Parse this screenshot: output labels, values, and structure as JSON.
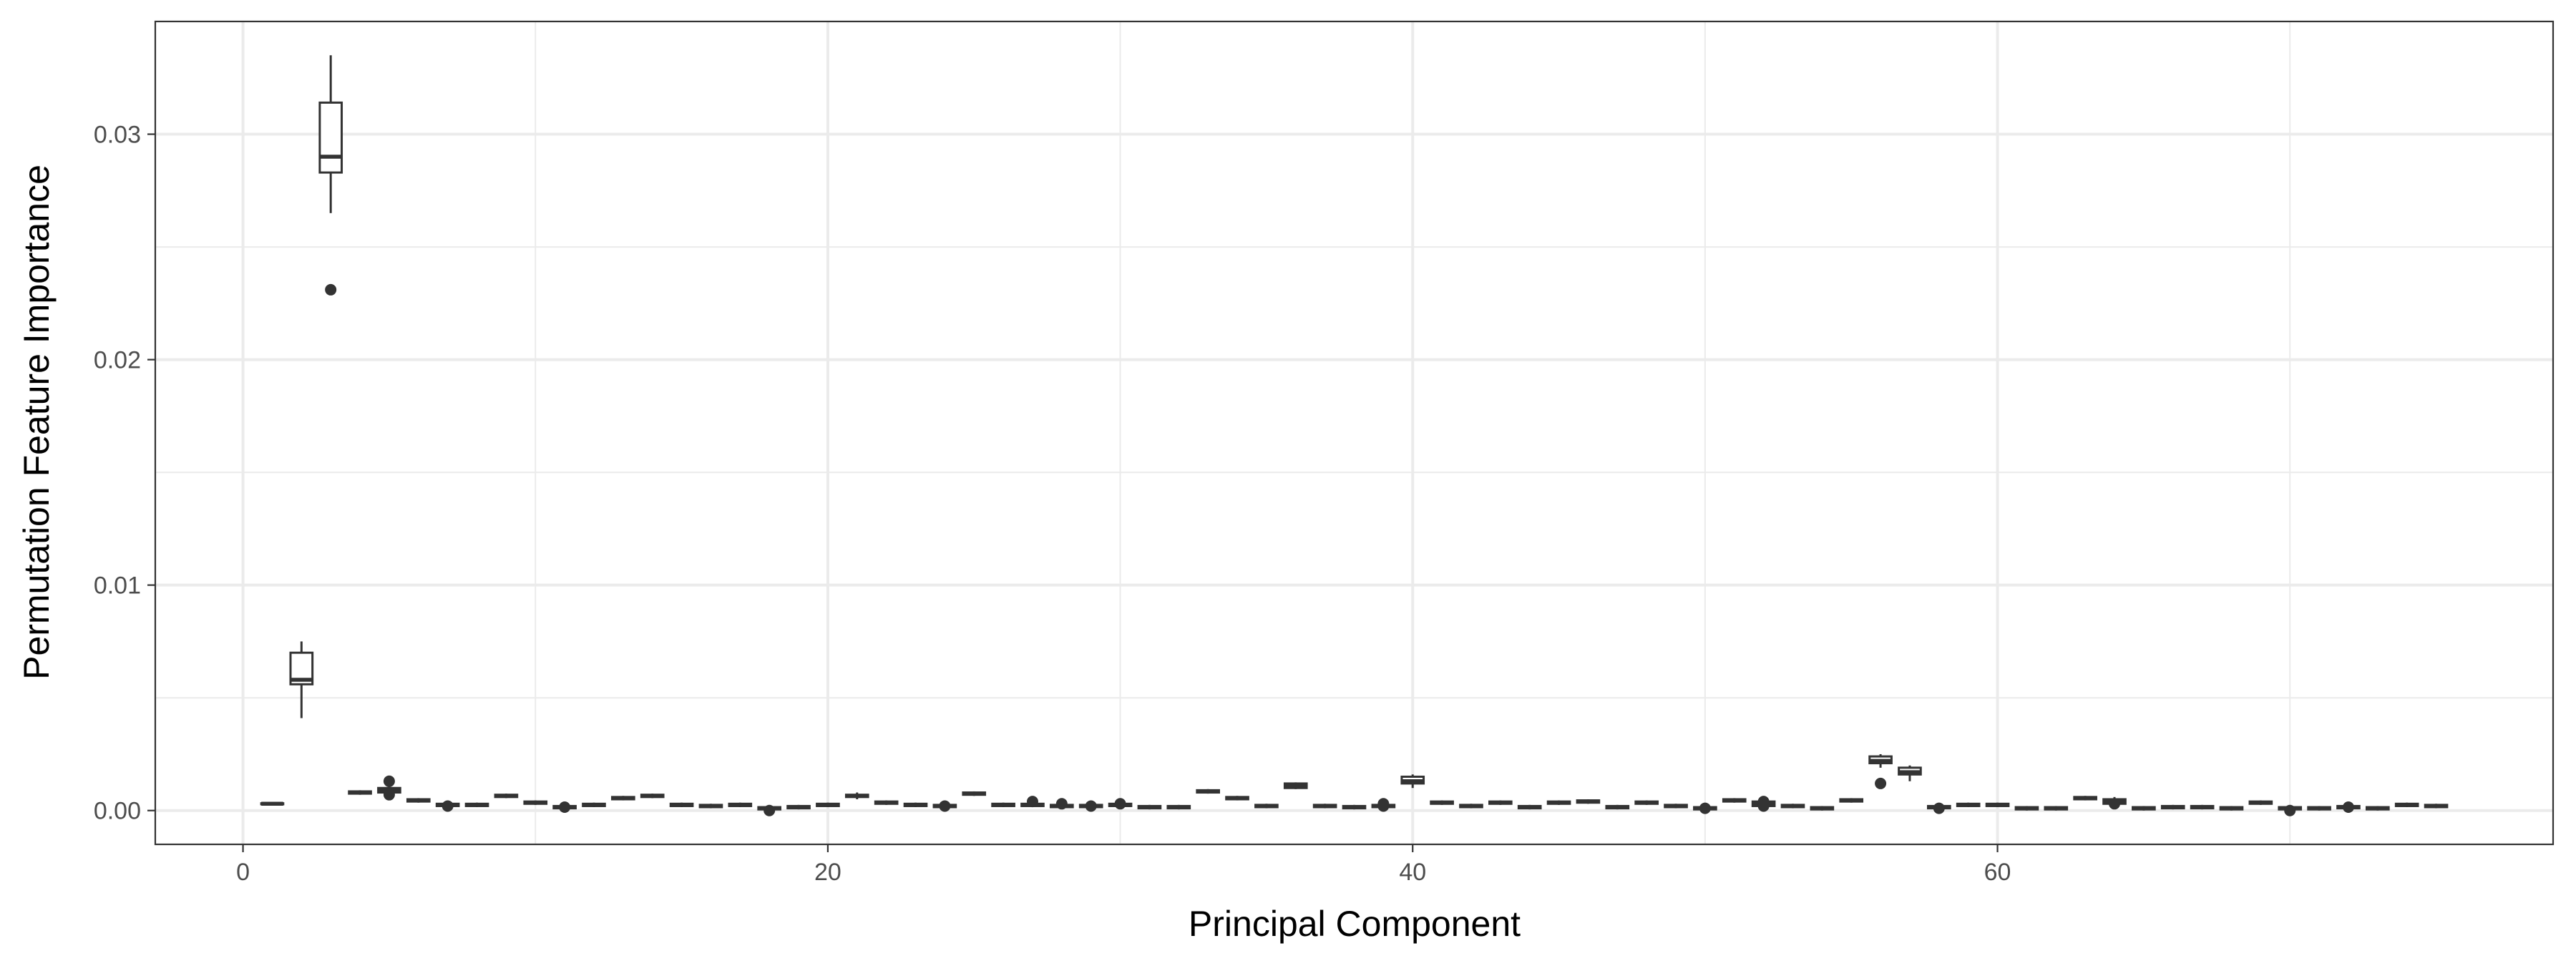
{
  "chart_data": {
    "type": "boxplot",
    "title": "",
    "xlabel": "Principal Component",
    "ylabel": "Permutation Feature Importance",
    "xlim": [
      -3,
      79
    ],
    "ylim": [
      -0.0015,
      0.035
    ],
    "x_ticks": [
      0,
      20,
      40,
      60
    ],
    "x_tick_labels": [
      "0",
      "20",
      "40",
      "60"
    ],
    "y_ticks": [
      0,
      0.01,
      0.02,
      0.03
    ],
    "y_tick_labels": [
      "0.00",
      "0.01",
      "0.02",
      "0.03"
    ],
    "grid": true,
    "legend": "none",
    "colors": {
      "panel_border": "#333333",
      "grid": "#ebebeb",
      "box": "#333333"
    },
    "boxes": [
      {
        "x": 1,
        "q1": 0.00028,
        "median": 0.0003,
        "q3": 0.00032,
        "whisker_low": 0.00026,
        "whisker_high": 0.00034,
        "outliers": []
      },
      {
        "x": 2,
        "q1": 0.0056,
        "median": 0.0058,
        "q3": 0.007,
        "whisker_low": 0.0041,
        "whisker_high": 0.0075,
        "outliers": []
      },
      {
        "x": 3,
        "q1": 0.0283,
        "median": 0.029,
        "q3": 0.0314,
        "whisker_low": 0.0265,
        "whisker_high": 0.0335,
        "outliers": [
          0.0231
        ]
      },
      {
        "x": 4,
        "q1": 0.00075,
        "median": 0.0008,
        "q3": 0.00085,
        "whisker_low": 0.0007,
        "whisker_high": 0.0009,
        "outliers": []
      },
      {
        "x": 5,
        "q1": 0.0008,
        "median": 0.0009,
        "q3": 0.001,
        "whisker_low": 0.0007,
        "whisker_high": 0.0011,
        "outliers": [
          0.0013,
          0.0007
        ]
      },
      {
        "x": 6,
        "q1": 0.0004,
        "median": 0.00045,
        "q3": 0.0005,
        "whisker_low": 0.00035,
        "whisker_high": 0.00055,
        "outliers": []
      },
      {
        "x": 7,
        "q1": 0.0002,
        "median": 0.00025,
        "q3": 0.0003,
        "whisker_low": 0.00015,
        "whisker_high": 0.00035,
        "outliers": [
          0.0002
        ]
      },
      {
        "x": 8,
        "q1": 0.0002,
        "median": 0.00025,
        "q3": 0.0003,
        "whisker_low": 0.00015,
        "whisker_high": 0.00035,
        "outliers": []
      },
      {
        "x": 9,
        "q1": 0.0006,
        "median": 0.00065,
        "q3": 0.0007,
        "whisker_low": 0.00055,
        "whisker_high": 0.00075,
        "outliers": []
      },
      {
        "x": 10,
        "q1": 0.0003,
        "median": 0.00035,
        "q3": 0.0004,
        "whisker_low": 0.00025,
        "whisker_high": 0.00045,
        "outliers": []
      },
      {
        "x": 11,
        "q1": 0.0001,
        "median": 0.00015,
        "q3": 0.0002,
        "whisker_low": 5e-05,
        "whisker_high": 0.00025,
        "outliers": [
          0.00015
        ]
      },
      {
        "x": 12,
        "q1": 0.0002,
        "median": 0.00025,
        "q3": 0.0003,
        "whisker_low": 0.00015,
        "whisker_high": 0.00035,
        "outliers": []
      },
      {
        "x": 13,
        "q1": 0.0005,
        "median": 0.00055,
        "q3": 0.0006,
        "whisker_low": 0.00045,
        "whisker_high": 0.00065,
        "outliers": []
      },
      {
        "x": 14,
        "q1": 0.0006,
        "median": 0.00065,
        "q3": 0.0007,
        "whisker_low": 0.00055,
        "whisker_high": 0.00075,
        "outliers": []
      },
      {
        "x": 15,
        "q1": 0.0002,
        "median": 0.00025,
        "q3": 0.0003,
        "whisker_low": 0.00015,
        "whisker_high": 0.00035,
        "outliers": []
      },
      {
        "x": 16,
        "q1": 0.00015,
        "median": 0.0002,
        "q3": 0.00025,
        "whisker_low": 0.0001,
        "whisker_high": 0.0003,
        "outliers": []
      },
      {
        "x": 17,
        "q1": 0.0002,
        "median": 0.00025,
        "q3": 0.0003,
        "whisker_low": 0.00015,
        "whisker_high": 0.00035,
        "outliers": []
      },
      {
        "x": 18,
        "q1": 5e-05,
        "median": 0.0001,
        "q3": 0.00015,
        "whisker_low": 0.0,
        "whisker_high": 0.0002,
        "outliers": [
          0.0
        ]
      },
      {
        "x": 19,
        "q1": 0.0001,
        "median": 0.00015,
        "q3": 0.0002,
        "whisker_low": 5e-05,
        "whisker_high": 0.00025,
        "outliers": []
      },
      {
        "x": 20,
        "q1": 0.0002,
        "median": 0.00025,
        "q3": 0.0003,
        "whisker_low": 0.00015,
        "whisker_high": 0.00035,
        "outliers": []
      },
      {
        "x": 21,
        "q1": 0.0006,
        "median": 0.00065,
        "q3": 0.0007,
        "whisker_low": 0.0005,
        "whisker_high": 0.0008,
        "outliers": []
      },
      {
        "x": 22,
        "q1": 0.0003,
        "median": 0.00035,
        "q3": 0.0004,
        "whisker_low": 0.00025,
        "whisker_high": 0.00045,
        "outliers": []
      },
      {
        "x": 23,
        "q1": 0.0002,
        "median": 0.00025,
        "q3": 0.0003,
        "whisker_low": 0.00015,
        "whisker_high": 0.00035,
        "outliers": []
      },
      {
        "x": 24,
        "q1": 0.00015,
        "median": 0.0002,
        "q3": 0.00025,
        "whisker_low": 0.0001,
        "whisker_high": 0.0003,
        "outliers": [
          0.0002
        ]
      },
      {
        "x": 25,
        "q1": 0.0007,
        "median": 0.00075,
        "q3": 0.0008,
        "whisker_low": 0.00065,
        "whisker_high": 0.00085,
        "outliers": []
      },
      {
        "x": 26,
        "q1": 0.0002,
        "median": 0.00025,
        "q3": 0.0003,
        "whisker_low": 0.00015,
        "whisker_high": 0.00035,
        "outliers": []
      },
      {
        "x": 27,
        "q1": 0.0002,
        "median": 0.00025,
        "q3": 0.0003,
        "whisker_low": 0.00015,
        "whisker_high": 0.00035,
        "outliers": [
          0.0004
        ]
      },
      {
        "x": 28,
        "q1": 0.00015,
        "median": 0.0002,
        "q3": 0.00025,
        "whisker_low": 0.0001,
        "whisker_high": 0.0003,
        "outliers": [
          0.0003
        ]
      },
      {
        "x": 29,
        "q1": 0.00015,
        "median": 0.0002,
        "q3": 0.00025,
        "whisker_low": 0.0001,
        "whisker_high": 0.0003,
        "outliers": [
          0.0002
        ]
      },
      {
        "x": 30,
        "q1": 0.0002,
        "median": 0.00025,
        "q3": 0.0003,
        "whisker_low": 0.00015,
        "whisker_high": 0.00035,
        "outliers": [
          0.0003
        ]
      },
      {
        "x": 31,
        "q1": 0.0001,
        "median": 0.00015,
        "q3": 0.0002,
        "whisker_low": 5e-05,
        "whisker_high": 0.00025,
        "outliers": []
      },
      {
        "x": 32,
        "q1": 0.0001,
        "median": 0.00015,
        "q3": 0.0002,
        "whisker_low": 5e-05,
        "whisker_high": 0.00025,
        "outliers": []
      },
      {
        "x": 33,
        "q1": 0.0008,
        "median": 0.00085,
        "q3": 0.0009,
        "whisker_low": 0.00075,
        "whisker_high": 0.00095,
        "outliers": []
      },
      {
        "x": 34,
        "q1": 0.0005,
        "median": 0.00055,
        "q3": 0.0006,
        "whisker_low": 0.00045,
        "whisker_high": 0.00065,
        "outliers": []
      },
      {
        "x": 35,
        "q1": 0.00015,
        "median": 0.0002,
        "q3": 0.00025,
        "whisker_low": 0.0001,
        "whisker_high": 0.0003,
        "outliers": []
      },
      {
        "x": 36,
        "q1": 0.001,
        "median": 0.0011,
        "q3": 0.0012,
        "whisker_low": 0.00095,
        "whisker_high": 0.00125,
        "outliers": []
      },
      {
        "x": 37,
        "q1": 0.00015,
        "median": 0.0002,
        "q3": 0.00025,
        "whisker_low": 0.0001,
        "whisker_high": 0.0003,
        "outliers": []
      },
      {
        "x": 38,
        "q1": 0.0001,
        "median": 0.00015,
        "q3": 0.0002,
        "whisker_low": 5e-05,
        "whisker_high": 0.00025,
        "outliers": []
      },
      {
        "x": 39,
        "q1": 0.00015,
        "median": 0.0002,
        "q3": 0.00025,
        "whisker_low": 0.0001,
        "whisker_high": 0.0003,
        "outliers": [
          0.0003,
          0.0002
        ]
      },
      {
        "x": 40,
        "q1": 0.0012,
        "median": 0.0013,
        "q3": 0.0015,
        "whisker_low": 0.001,
        "whisker_high": 0.0016,
        "outliers": []
      },
      {
        "x": 41,
        "q1": 0.0003,
        "median": 0.00035,
        "q3": 0.0004,
        "whisker_low": 0.00025,
        "whisker_high": 0.00045,
        "outliers": []
      },
      {
        "x": 42,
        "q1": 0.00015,
        "median": 0.0002,
        "q3": 0.00025,
        "whisker_low": 0.0001,
        "whisker_high": 0.0003,
        "outliers": []
      },
      {
        "x": 43,
        "q1": 0.0003,
        "median": 0.00035,
        "q3": 0.0004,
        "whisker_low": 0.00025,
        "whisker_high": 0.00045,
        "outliers": []
      },
      {
        "x": 44,
        "q1": 0.0001,
        "median": 0.00015,
        "q3": 0.0002,
        "whisker_low": 5e-05,
        "whisker_high": 0.00025,
        "outliers": []
      },
      {
        "x": 45,
        "q1": 0.0003,
        "median": 0.00035,
        "q3": 0.0004,
        "whisker_low": 0.00025,
        "whisker_high": 0.00045,
        "outliers": []
      },
      {
        "x": 46,
        "q1": 0.00035,
        "median": 0.0004,
        "q3": 0.00045,
        "whisker_low": 0.0003,
        "whisker_high": 0.0005,
        "outliers": []
      },
      {
        "x": 47,
        "q1": 0.0001,
        "median": 0.00015,
        "q3": 0.0002,
        "whisker_low": 5e-05,
        "whisker_high": 0.00025,
        "outliers": []
      },
      {
        "x": 48,
        "q1": 0.0003,
        "median": 0.00035,
        "q3": 0.0004,
        "whisker_low": 0.00025,
        "whisker_high": 0.00045,
        "outliers": []
      },
      {
        "x": 49,
        "q1": 0.00015,
        "median": 0.0002,
        "q3": 0.00025,
        "whisker_low": 0.0001,
        "whisker_high": 0.0003,
        "outliers": []
      },
      {
        "x": 50,
        "q1": 5e-05,
        "median": 0.0001,
        "q3": 0.00015,
        "whisker_low": 0.0,
        "whisker_high": 0.0002,
        "outliers": [
          0.0001
        ]
      },
      {
        "x": 51,
        "q1": 0.0004,
        "median": 0.00045,
        "q3": 0.0005,
        "whisker_low": 0.00035,
        "whisker_high": 0.00055,
        "outliers": []
      },
      {
        "x": 52,
        "q1": 0.0002,
        "median": 0.0003,
        "q3": 0.0004,
        "whisker_low": 0.00015,
        "whisker_high": 0.00045,
        "outliers": [
          0.0004,
          0.0002
        ]
      },
      {
        "x": 53,
        "q1": 0.00015,
        "median": 0.0002,
        "q3": 0.00025,
        "whisker_low": 0.0001,
        "whisker_high": 0.0003,
        "outliers": []
      },
      {
        "x": 54,
        "q1": 5e-05,
        "median": 0.0001,
        "q3": 0.00015,
        "whisker_low": 0.0,
        "whisker_high": 0.0002,
        "outliers": []
      },
      {
        "x": 55,
        "q1": 0.0004,
        "median": 0.00045,
        "q3": 0.0005,
        "whisker_low": 0.00035,
        "whisker_high": 0.00055,
        "outliers": []
      },
      {
        "x": 56,
        "q1": 0.0021,
        "median": 0.0022,
        "q3": 0.0024,
        "whisker_low": 0.0019,
        "whisker_high": 0.0025,
        "outliers": [
          0.0012
        ]
      },
      {
        "x": 57,
        "q1": 0.0016,
        "median": 0.0017,
        "q3": 0.0019,
        "whisker_low": 0.0013,
        "whisker_high": 0.002,
        "outliers": []
      },
      {
        "x": 58,
        "q1": 0.0001,
        "median": 0.00015,
        "q3": 0.0002,
        "whisker_low": 5e-05,
        "whisker_high": 0.00025,
        "outliers": [
          0.0001
        ]
      },
      {
        "x": 59,
        "q1": 0.0002,
        "median": 0.00025,
        "q3": 0.0003,
        "whisker_low": 0.00015,
        "whisker_high": 0.00035,
        "outliers": []
      },
      {
        "x": 60,
        "q1": 0.0002,
        "median": 0.00025,
        "q3": 0.0003,
        "whisker_low": 0.00015,
        "whisker_high": 0.00035,
        "outliers": []
      },
      {
        "x": 61,
        "q1": 5e-05,
        "median": 0.0001,
        "q3": 0.00015,
        "whisker_low": 0.0,
        "whisker_high": 0.0002,
        "outliers": []
      },
      {
        "x": 62,
        "q1": 5e-05,
        "median": 0.0001,
        "q3": 0.00015,
        "whisker_low": 0.0,
        "whisker_high": 0.0002,
        "outliers": []
      },
      {
        "x": 63,
        "q1": 0.0005,
        "median": 0.00055,
        "q3": 0.0006,
        "whisker_low": 0.00045,
        "whisker_high": 0.00065,
        "outliers": []
      },
      {
        "x": 64,
        "q1": 0.0003,
        "median": 0.0004,
        "q3": 0.0005,
        "whisker_low": 0.0002,
        "whisker_high": 0.0006,
        "outliers": [
          0.0003
        ]
      },
      {
        "x": 65,
        "q1": 5e-05,
        "median": 0.0001,
        "q3": 0.00015,
        "whisker_low": 0.0,
        "whisker_high": 0.0002,
        "outliers": []
      },
      {
        "x": 66,
        "q1": 0.0001,
        "median": 0.00015,
        "q3": 0.0002,
        "whisker_low": 5e-05,
        "whisker_high": 0.00025,
        "outliers": []
      },
      {
        "x": 67,
        "q1": 0.0001,
        "median": 0.00015,
        "q3": 0.0002,
        "whisker_low": 5e-05,
        "whisker_high": 0.00025,
        "outliers": []
      },
      {
        "x": 68,
        "q1": 5e-05,
        "median": 0.0001,
        "q3": 0.00015,
        "whisker_low": 0.0,
        "whisker_high": 0.0002,
        "outliers": []
      },
      {
        "x": 69,
        "q1": 0.0003,
        "median": 0.00035,
        "q3": 0.0004,
        "whisker_low": 0.00025,
        "whisker_high": 0.00045,
        "outliers": []
      },
      {
        "x": 70,
        "q1": 5e-05,
        "median": 0.0001,
        "q3": 0.00015,
        "whisker_low": 0.0,
        "whisker_high": 0.0002,
        "outliers": [
          0.0
        ]
      },
      {
        "x": 71,
        "q1": 5e-05,
        "median": 0.0001,
        "q3": 0.00015,
        "whisker_low": 0.0,
        "whisker_high": 0.0002,
        "outliers": []
      },
      {
        "x": 72,
        "q1": 0.0001,
        "median": 0.00015,
        "q3": 0.0002,
        "whisker_low": 5e-05,
        "whisker_high": 0.00025,
        "outliers": [
          0.00015
        ]
      },
      {
        "x": 73,
        "q1": 5e-05,
        "median": 0.0001,
        "q3": 0.00015,
        "whisker_low": 0.0,
        "whisker_high": 0.0002,
        "outliers": []
      },
      {
        "x": 74,
        "q1": 0.0002,
        "median": 0.00025,
        "q3": 0.0003,
        "whisker_low": 0.00015,
        "whisker_high": 0.00035,
        "outliers": []
      },
      {
        "x": 75,
        "q1": 0.00015,
        "median": 0.0002,
        "q3": 0.00025,
        "whisker_low": 0.0001,
        "whisker_high": 0.0003,
        "outliers": []
      }
    ]
  }
}
